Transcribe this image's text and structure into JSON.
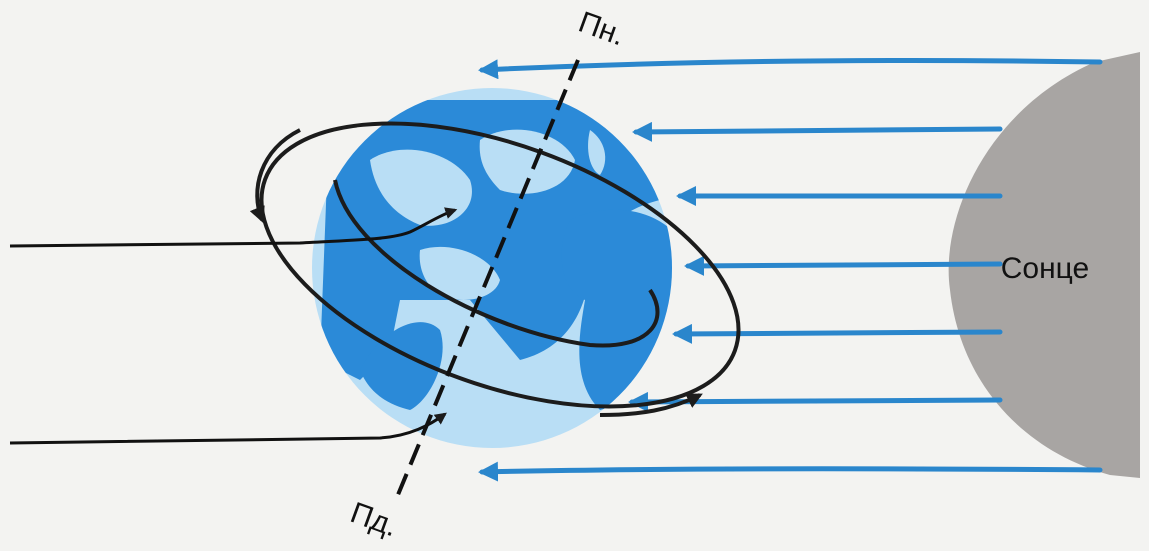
{
  "labels": {
    "north": "Пн.",
    "south": "Пд.",
    "sun": "Сонце"
  },
  "colors": {
    "background": "#f3f3f1",
    "ocean": "#2b8ad8",
    "land": "#b9def5",
    "sun_rays": "#2a86cc",
    "sun": "#a8a5a3",
    "orbit_lines": "#1c1c1c"
  },
  "sun_rays_count": 7
}
